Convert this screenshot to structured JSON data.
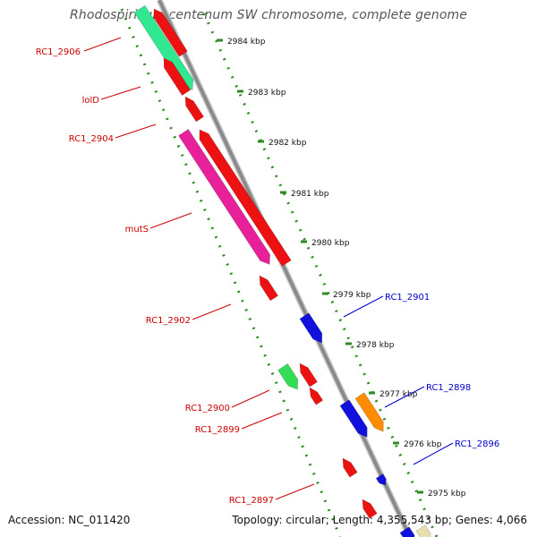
{
  "title": "Rhodospirillum centenum SW chromosome, complete genome",
  "footer": {
    "accession": "Accession: NC_011420",
    "summary": "Topology: circular; Length: 4,355,543 bp; Genes: 4,066"
  },
  "colors": {
    "backbone": "#8a8a8a",
    "ruler": "#2e8b22",
    "forward_label": "#cc0000",
    "reverse_label": "#0000cc",
    "scale_text": "#111111"
  },
  "scale_ticks": [
    "2984 kbp",
    "2983 kbp",
    "2982 kbp",
    "2981 kbp",
    "2980 kbp",
    "2979 kbp",
    "2978 kbp",
    "2977 kbp",
    "2976 kbp",
    "2975 kbp"
  ],
  "forward_labels": [
    "RC1_2906",
    "lolD",
    "RC1_2904",
    "mutS",
    "RC1_2902",
    "RC1_2900",
    "RC1_2899",
    "RC1_2897"
  ],
  "reverse_labels": [
    "RC1_2901",
    "RC1_2898",
    "RC1_2896"
  ],
  "genes": [
    {
      "strand": "forward",
      "color": "#ee1111"
    },
    {
      "strand": "forward",
      "color": "#ee1111"
    },
    {
      "strand": "forward",
      "color": "#ee1111"
    },
    {
      "strand": "forward",
      "color": "#ee1111"
    },
    {
      "strand": "forward",
      "color": "#ee1111"
    },
    {
      "strand": "forward",
      "color": "#ee1111"
    },
    {
      "strand": "forward",
      "color": "#ee1111"
    },
    {
      "strand": "forward",
      "color": "#ee1111"
    },
    {
      "strand": "forward",
      "color": "#ee1111"
    },
    {
      "strand": "forward",
      "color": "#ee1111"
    },
    {
      "strand": "forward",
      "color": "#30e890"
    },
    {
      "strand": "forward",
      "color": "#e8209a"
    },
    {
      "strand": "forward",
      "color": "#33dd55"
    },
    {
      "strand": "reverse",
      "color": "#1111dd"
    },
    {
      "strand": "reverse",
      "color": "#1111dd"
    },
    {
      "strand": "reverse",
      "color": "#ff8c00"
    },
    {
      "strand": "reverse",
      "color": "#1111dd"
    },
    {
      "strand": "reverse",
      "color": "#1111dd"
    },
    {
      "strand": "reverse",
      "color": "#e8dfb0"
    }
  ]
}
